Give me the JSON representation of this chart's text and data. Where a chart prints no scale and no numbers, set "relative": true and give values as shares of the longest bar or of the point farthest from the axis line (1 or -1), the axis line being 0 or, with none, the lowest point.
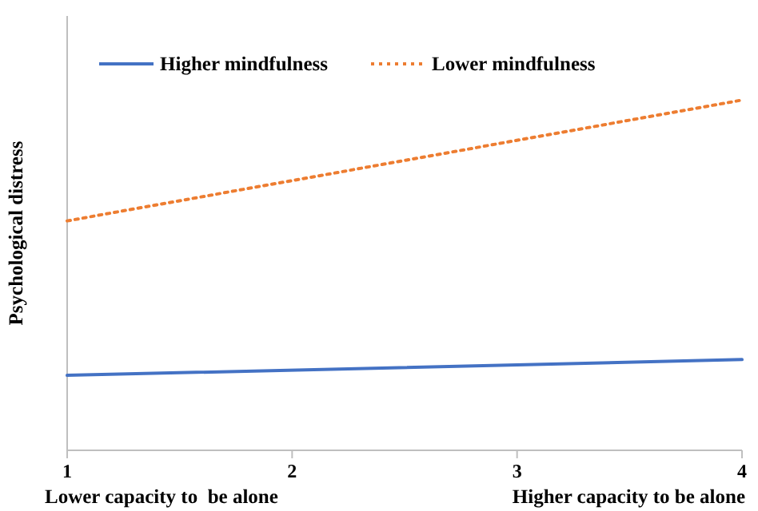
{
  "chart_data": {
    "type": "line",
    "ylabel": "Psychological distress",
    "relative": true,
    "x": [
      1,
      4
    ],
    "xlim": [
      1,
      4
    ],
    "xticks": [
      1,
      2,
      3,
      4
    ],
    "legend": "top",
    "grid": false,
    "marker": "none",
    "series": [
      {
        "name": "Higher mindfulness",
        "color": "#4472c4",
        "values": [
          0.214,
          0.259
        ],
        "line_style": "solid"
      },
      {
        "name": "Lower mindfulness",
        "color": "#ed7d31",
        "values": [
          0.655,
          1.0
        ],
        "line_style": "dotted"
      }
    ],
    "annotations": [
      "Lower capacity to  be alone",
      "Higher capacity to be alone"
    ]
  }
}
